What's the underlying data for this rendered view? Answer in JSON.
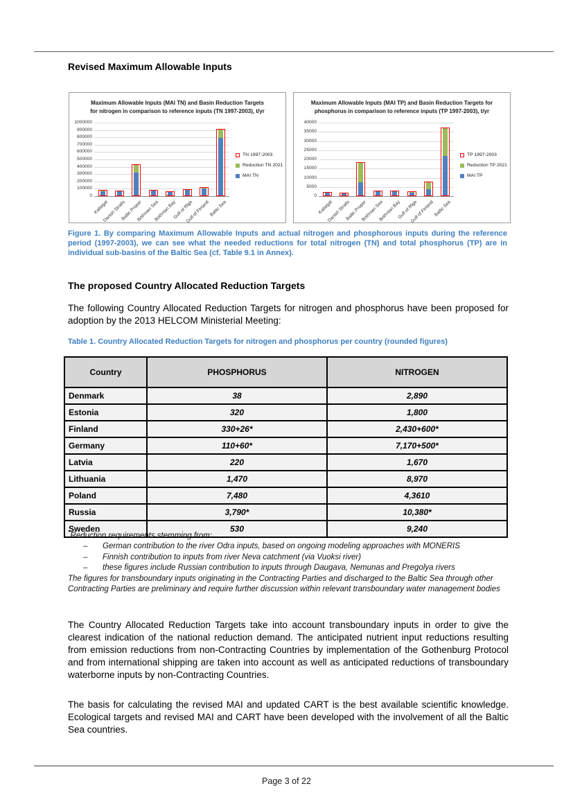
{
  "page": {
    "footer_text": "Page 3 of 22"
  },
  "headings": {
    "h1": "Revised Maximum Allowable Inputs",
    "h2": "The proposed Country Allocated Reduction Targets"
  },
  "figure_caption": "Figure 1. By comparing Maximum Allowable Inputs and actual nitrogen and phosphorous inputs during the reference period (1997-2003), we can see what the needed reductions for total nitrogen (TN) and total phosphorus (TP) are in individual sub-basins of the Baltic Sea (cf. Table 9.1 in Annex).",
  "intro_paragraph": "The following Country Allocated Reduction Targets for nitrogen and phosphorus have been proposed for adoption by the 2013 HELCOM Ministerial Meeting:",
  "table_caption": "Table 1. Country Allocated Reduction Targets for nitrogen and phosphorus per country (rounded figures)",
  "table": {
    "headers": [
      "Country",
      "PHOSPHORUS",
      "NITROGEN"
    ],
    "rows": [
      [
        "Denmark",
        "38",
        "2,890"
      ],
      [
        "Estonia",
        "320",
        "1,800"
      ],
      [
        "Finland",
        "330+26*",
        "2,430+600*"
      ],
      [
        "Germany",
        "110+60*",
        "7,170+500*"
      ],
      [
        "Latvia",
        "220",
        "1,670"
      ],
      [
        "Lithuania",
        "1,470",
        "8,970"
      ],
      [
        "Poland",
        "7,480",
        "4,3610"
      ],
      [
        "Russia",
        "3,790*",
        "10,380*"
      ],
      [
        "Sweden",
        "530",
        "9,240"
      ]
    ]
  },
  "footnote": {
    "marker": "*",
    "lead": "Reduction requirements stemming from:",
    "dash": "–",
    "items": [
      "German contribution to the river Odra inputs, based on ongoing modeling approaches with MONERIS",
      "Finnish contribution to inputs from river Neva catchment (via Vuoksi river)",
      "these figures include Russian contribution to inputs through Daugava, Nemunas and Pregolya rivers"
    ],
    "tail": "The figures for transboundary inputs originating in the Contracting Parties and discharged to the Baltic Sea through other Contracting Parties are preliminary and require further discussion within relevant transboundary water management bodies"
  },
  "paragraphs": [
    "The Country Allocated Reduction Targets take into account transboundary inputs in order to give the clearest indication of the national reduction demand. The anticipated nutrient input reductions resulting from emission reductions from non-Contracting Countries by implementation of the Gothenburg Protocol and from international shipping are taken into account as well as anticipated reductions of transboundary waterborne inputs by non-Contracting Countries.",
    "The basis for calculating the revised MAI and updated CART is the best available scientific knowledge. Ecological targets and revised MAI and CART have been developed with the involvement of all the Baltic Sea countries."
  ],
  "colors": {
    "caption_blue": "#3E7FC1",
    "bar_blue": "#4F81BD",
    "bar_green": "#9BBB59",
    "frame_red": "#FF0000",
    "table_header_bg": "#D6D6D6",
    "table_row_bg": "#F2F2F2"
  },
  "chart_data": [
    {
      "type": "bar",
      "title_lines": [
        "Maximum Allowable Inputs (MAI TN) and Basin Reduction Targets",
        "for nitrogen in comparison to reference inputs (TN 1997-2003), t/yr"
      ],
      "categories": [
        "Kattegat",
        "Danish Straits",
        "Baltic Proper",
        "Bothnian Sea",
        "Bothnian Bay",
        "Gulf of Riga",
        "Gulf of Finland",
        "Baltic Sea"
      ],
      "series": [
        {
          "name": "TN 1997-2003",
          "role": "reference-frame",
          "color": "#FF0000",
          "values": [
            78000,
            66000,
            424000,
            79000,
            58000,
            88000,
            116000,
            910000
          ]
        },
        {
          "name": "Reduction TN 2021",
          "role": "stack-top",
          "color": "#9BBB59",
          "values": [
            5000,
            0,
            99000,
            0,
            0,
            0,
            14000,
            118000
          ]
        },
        {
          "name": "MAI TN",
          "role": "stack-bottom",
          "color": "#4F81BD",
          "values": [
            73000,
            66000,
            325000,
            79000,
            58000,
            88000,
            102000,
            792000
          ]
        }
      ],
      "ylim": [
        0,
        1000000
      ],
      "ytick_step": 100000,
      "xlabel": "",
      "ylabel": "",
      "grid": true,
      "legend_position": "right"
    },
    {
      "type": "bar",
      "title_lines": [
        "Maximum Allowable Inputs (MAI TP) and Basin Reduction Targets for",
        "phosphorus in comparison to reference inputs (TP 1997-2003),  t/yr"
      ],
      "categories": [
        "Kattegat",
        "Danish Straits",
        "Baltic Proper",
        "Bothnian Sea",
        "Bothnian Bay",
        "Gulf of Riga",
        "Gulf of Finland",
        "Baltic Sea"
      ],
      "series": [
        {
          "name": "TP 1997-2003",
          "role": "reference-frame",
          "color": "#FF0000",
          "values": [
            1700,
            1600,
            18300,
            2800,
            2700,
            2300,
            7500,
            36900
          ]
        },
        {
          "name": "Reduction TP 2021",
          "role": "stack-top",
          "color": "#9BBB59",
          "values": [
            0,
            0,
            10900,
            0,
            0,
            300,
            3900,
            15200
          ]
        },
        {
          "name": "MAI TP",
          "role": "stack-bottom",
          "color": "#4F81BD",
          "values": [
            1700,
            1600,
            7400,
            2800,
            2700,
            2000,
            3600,
            21700
          ]
        }
      ],
      "ylim": [
        0,
        40000
      ],
      "ytick_step": 5000,
      "xlabel": "",
      "ylabel": "",
      "grid": true,
      "legend_position": "right"
    }
  ]
}
